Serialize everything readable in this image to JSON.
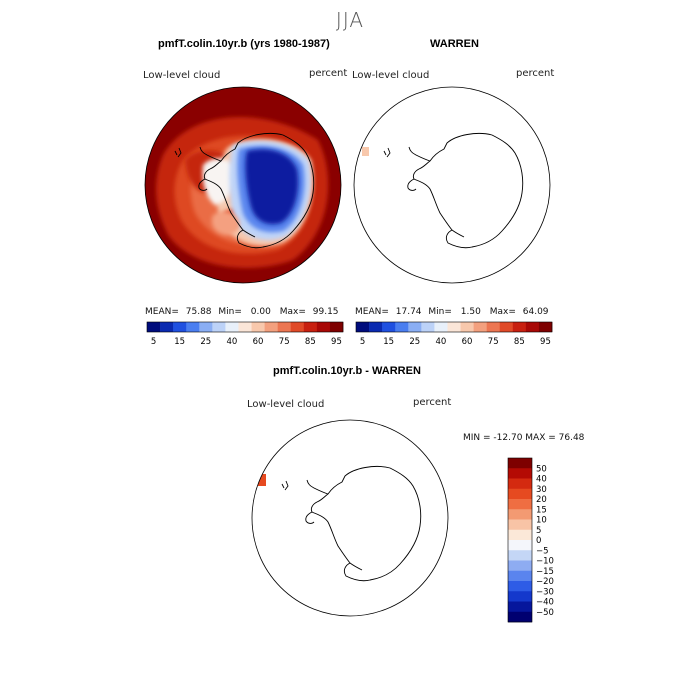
{
  "season": "JJA",
  "panels": [
    {
      "title": "pmfT.colin.10yr.b (yrs 1980-1987)",
      "variable": "Low-level cloud",
      "units": "percent",
      "stats": {
        "mean_label": "MEAN=",
        "mean": "75.88",
        "min_label": "Min=",
        "min": "0.00",
        "max_label": "Max=",
        "max": "99.15"
      }
    },
    {
      "title": "WARREN",
      "variable": "Low-level cloud",
      "units": "percent",
      "stats": {
        "mean_label": "MEAN=",
        "mean": "17.74",
        "min_label": "Min=",
        "min": "1.50",
        "max_label": "Max=",
        "max": "64.09"
      }
    },
    {
      "title": "pmfT.colin.10yr.b - WARREN",
      "variable": "Low-level cloud",
      "units": "percent",
      "minmax": "MIN = -12.70 MAX =  76.48"
    }
  ],
  "abs_colorbar": {
    "labels": [
      "5",
      "15",
      "25",
      "40",
      "60",
      "75",
      "85",
      "95"
    ],
    "colors": [
      "#000c7c",
      "#0a2ab0",
      "#1f50e0",
      "#4a7ef0",
      "#8aaef4",
      "#bcd2f8",
      "#e8f0fa",
      "#fbe6d8",
      "#f8c8ac",
      "#f3a07e",
      "#ec7652",
      "#e04a28",
      "#c82010",
      "#a80806",
      "#7e0000"
    ]
  },
  "diff_colorbar": {
    "labels": [
      "50",
      "40",
      "30",
      "20",
      "15",
      "10",
      "5",
      "0",
      "−5",
      "−10",
      "−15",
      "−20",
      "−30",
      "−40",
      "−50"
    ],
    "colors": [
      "#7e0000",
      "#b40a04",
      "#d42a10",
      "#e64a20",
      "#ef6e42",
      "#f39a72",
      "#f8c4a6",
      "#fbe8d8",
      "#f4f6fb",
      "#c4d6f6",
      "#8eacf2",
      "#5a84ee",
      "#2e5ce6",
      "#1438cc",
      "#06169c",
      "#000070"
    ]
  }
}
